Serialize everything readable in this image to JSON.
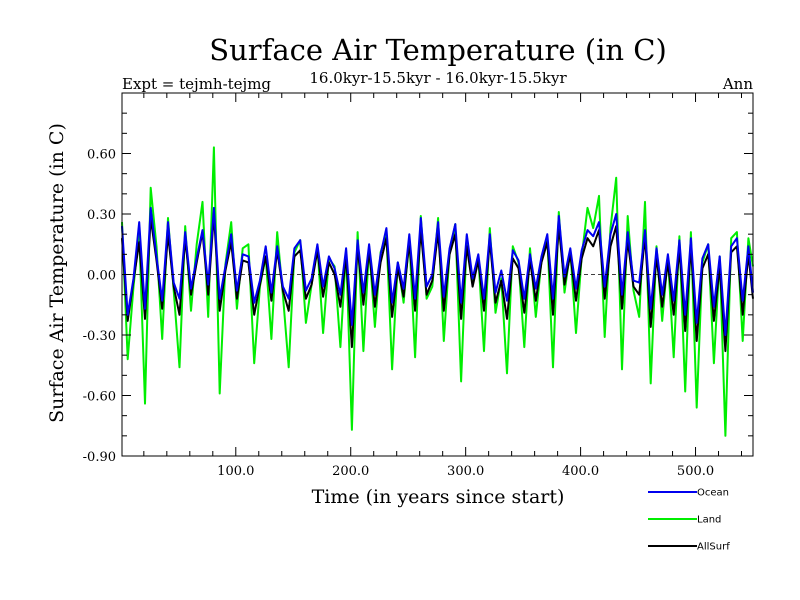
{
  "chart_data": {
    "type": "line",
    "title": "Surface Air Temperature (in C)",
    "subtitle": "16.0kyr-15.5kyr - 16.0kyr-15.5kyr",
    "left_label": "Expt = tejmh-tejmg",
    "right_label": "Ann",
    "xlabel": "Time (in years since start)",
    "ylabel": "Surface Air Temperature (in C)",
    "xlim": [
      1,
      550
    ],
    "ylim": [
      -0.9,
      0.9
    ],
    "x_ticks": [
      100,
      200,
      300,
      400,
      500
    ],
    "x_tick_labels": [
      "100.0",
      "200.0",
      "300.0",
      "400.0",
      "500.0"
    ],
    "y_ticks": [
      -0.9,
      -0.6,
      -0.3,
      0.0,
      0.3,
      0.6
    ],
    "y_tick_labels": [
      "-0.90",
      "-0.60",
      "-0.30",
      "0.00",
      "0.30",
      "0.60"
    ],
    "zero_line": true,
    "x_step": 5,
    "series": [
      {
        "name": "Land",
        "color": "#00ee00",
        "x_start": 1,
        "values": [
          0.26,
          -0.42,
          -0.06,
          0.21,
          -0.64,
          0.43,
          0.14,
          -0.32,
          0.28,
          -0.08,
          -0.46,
          0.24,
          -0.18,
          0.15,
          0.36,
          -0.21,
          0.63,
          -0.59,
          0.05,
          0.26,
          -0.17,
          0.13,
          0.15,
          -0.44,
          -0.06,
          0.09,
          -0.32,
          0.21,
          -0.1,
          -0.46,
          0.11,
          0.17,
          -0.24,
          -0.05,
          0.14,
          -0.29,
          0.08,
          0.04,
          -0.36,
          0.12,
          -0.77,
          0.21,
          -0.38,
          0.14,
          -0.26,
          0.11,
          0.2,
          -0.47,
          0.06,
          -0.14,
          0.18,
          -0.41,
          0.29,
          -0.12,
          -0.06,
          0.28,
          -0.33,
          0.11,
          0.25,
          -0.53,
          0.19,
          -0.05,
          0.09,
          -0.38,
          0.23,
          -0.19,
          -0.02,
          -0.49,
          0.14,
          0.06,
          -0.36,
          0.13,
          -0.21,
          0.07,
          0.19,
          -0.46,
          0.31,
          -0.09,
          0.12,
          -0.29,
          0.09,
          0.33,
          0.23,
          0.39,
          -0.31,
          0.23,
          0.48,
          -0.47,
          0.29,
          -0.08,
          -0.21,
          0.36,
          -0.54,
          0.14,
          -0.23,
          0.09,
          -0.41,
          0.19,
          -0.58,
          0.21,
          -0.66,
          0.06,
          0.15,
          -0.44,
          0.09,
          -0.8,
          0.18,
          0.21,
          -0.33,
          0.18,
          0.04
        ]
      },
      {
        "name": "AllSurf",
        "color": "#000000",
        "x_start": 1,
        "values": [
          0.18,
          -0.23,
          -0.03,
          0.16,
          -0.22,
          0.28,
          0.07,
          -0.17,
          0.2,
          -0.06,
          -0.2,
          0.18,
          -0.1,
          0.06,
          0.21,
          -0.1,
          0.3,
          -0.18,
          0.02,
          0.16,
          -0.12,
          0.07,
          0.06,
          -0.2,
          -0.05,
          0.09,
          -0.13,
          0.12,
          -0.08,
          -0.18,
          0.09,
          0.12,
          -0.12,
          -0.05,
          0.12,
          -0.11,
          0.06,
          0.0,
          -0.16,
          0.09,
          -0.36,
          0.14,
          -0.15,
          0.12,
          -0.16,
          0.06,
          0.18,
          -0.21,
          0.03,
          -0.11,
          0.16,
          -0.18,
          0.22,
          -0.1,
          -0.03,
          0.21,
          -0.18,
          0.1,
          0.2,
          -0.22,
          0.14,
          -0.06,
          0.07,
          -0.18,
          0.17,
          -0.14,
          -0.03,
          -0.22,
          0.08,
          0.03,
          -0.19,
          0.07,
          -0.13,
          0.06,
          0.16,
          -0.2,
          0.24,
          -0.05,
          0.1,
          -0.13,
          0.08,
          0.18,
          0.14,
          0.22,
          -0.12,
          0.14,
          0.24,
          -0.17,
          0.17,
          -0.06,
          -0.1,
          0.19,
          -0.26,
          0.09,
          -0.16,
          0.06,
          -0.2,
          0.13,
          -0.28,
          0.14,
          -0.33,
          0.03,
          0.1,
          -0.23,
          0.04,
          -0.38,
          0.11,
          0.14,
          -0.2,
          0.1,
          -0.12
        ]
      },
      {
        "name": "Ocean",
        "color": "#0000ee",
        "x_start": 1,
        "values": [
          0.24,
          -0.2,
          -0.02,
          0.26,
          -0.17,
          0.33,
          0.09,
          -0.13,
          0.26,
          -0.04,
          -0.12,
          0.21,
          -0.07,
          0.08,
          0.22,
          -0.05,
          0.33,
          -0.12,
          0.04,
          0.2,
          -0.08,
          0.1,
          0.09,
          -0.14,
          -0.03,
          0.14,
          -0.09,
          0.14,
          -0.06,
          -0.12,
          0.13,
          0.17,
          -0.08,
          -0.02,
          0.15,
          -0.06,
          0.09,
          0.03,
          -0.1,
          0.13,
          -0.25,
          0.17,
          -0.09,
          0.15,
          -0.1,
          0.1,
          0.23,
          -0.14,
          0.06,
          -0.07,
          0.2,
          -0.12,
          0.28,
          -0.06,
          0.0,
          0.26,
          -0.11,
          0.13,
          0.25,
          -0.14,
          0.2,
          -0.02,
          0.1,
          -0.12,
          0.2,
          -0.09,
          0.02,
          -0.13,
          0.12,
          0.07,
          -0.12,
          0.1,
          -0.07,
          0.09,
          0.2,
          -0.12,
          0.29,
          -0.01,
          0.13,
          -0.07,
          0.12,
          0.22,
          0.19,
          0.26,
          -0.06,
          0.2,
          0.3,
          -0.1,
          0.21,
          -0.03,
          -0.04,
          0.22,
          -0.17,
          0.13,
          -0.1,
          0.1,
          -0.13,
          0.17,
          -0.2,
          0.18,
          -0.24,
          0.08,
          0.15,
          -0.16,
          0.09,
          -0.3,
          0.14,
          0.18,
          -0.13,
          0.14,
          -0.09
        ]
      }
    ],
    "legend": [
      {
        "name": "Ocean",
        "color": "#0000ee"
      },
      {
        "name": "Land",
        "color": "#00ee00"
      },
      {
        "name": "AllSurf",
        "color": "#000000"
      }
    ]
  }
}
